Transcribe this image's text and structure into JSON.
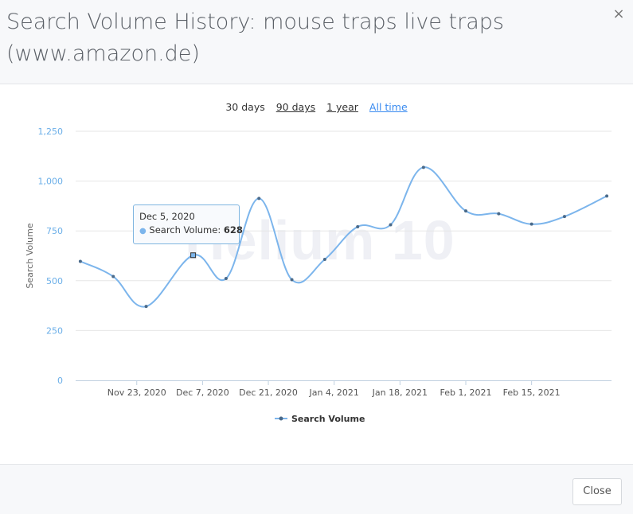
{
  "header": {
    "title": "Search Volume History: mouse traps live traps (www.amazon.de)",
    "close_icon": "×"
  },
  "ranges": {
    "items": [
      "30 days",
      "90 days",
      "1 year",
      "All time"
    ],
    "active": "All time"
  },
  "watermark": "Helium 10",
  "tooltip": {
    "date": "Dec 5, 2020",
    "series_label": "Search Volume:",
    "value": "628"
  },
  "footer": {
    "close_label": "Close"
  },
  "colors": {
    "series": "#7cb5ec",
    "active_link": "#3a8bf0",
    "axis_label": "#6aaee8"
  },
  "chart_data": {
    "type": "line",
    "ylabel": "Search Volume",
    "ylim": [
      0,
      1250
    ],
    "yticks": [
      0,
      250,
      500,
      750,
      1000,
      1250
    ],
    "ytick_labels": [
      "0",
      "250",
      "500",
      "750",
      "1,000",
      "1,250"
    ],
    "xlim": [
      "2020-11-10",
      "2021-03-04"
    ],
    "xticks": [
      "2020-11-23",
      "2020-12-07",
      "2020-12-21",
      "2021-01-04",
      "2021-01-18",
      "2021-02-01",
      "2021-02-15"
    ],
    "xtick_labels": [
      "Nov 23, 2020",
      "Dec 7, 2020",
      "Dec 21, 2020",
      "Jan 4, 2021",
      "Jan 18, 2021",
      "Feb 1, 2021",
      "Feb 15, 2021"
    ],
    "grid": true,
    "legend": "bottom-center",
    "series": [
      {
        "name": "Search Volume",
        "x": [
          "2020-11-11",
          "2020-11-18",
          "2020-11-25",
          "2020-12-05",
          "2020-12-12",
          "2020-12-19",
          "2020-12-26",
          "2021-01-02",
          "2021-01-09",
          "2021-01-16",
          "2021-01-23",
          "2021-02-01",
          "2021-02-08",
          "2021-02-15",
          "2021-02-22",
          "2021-03-03"
        ],
        "values": [
          597,
          521,
          371,
          628,
          511,
          913,
          505,
          607,
          771,
          781,
          1069,
          850,
          836,
          784,
          822,
          925
        ]
      }
    ]
  }
}
